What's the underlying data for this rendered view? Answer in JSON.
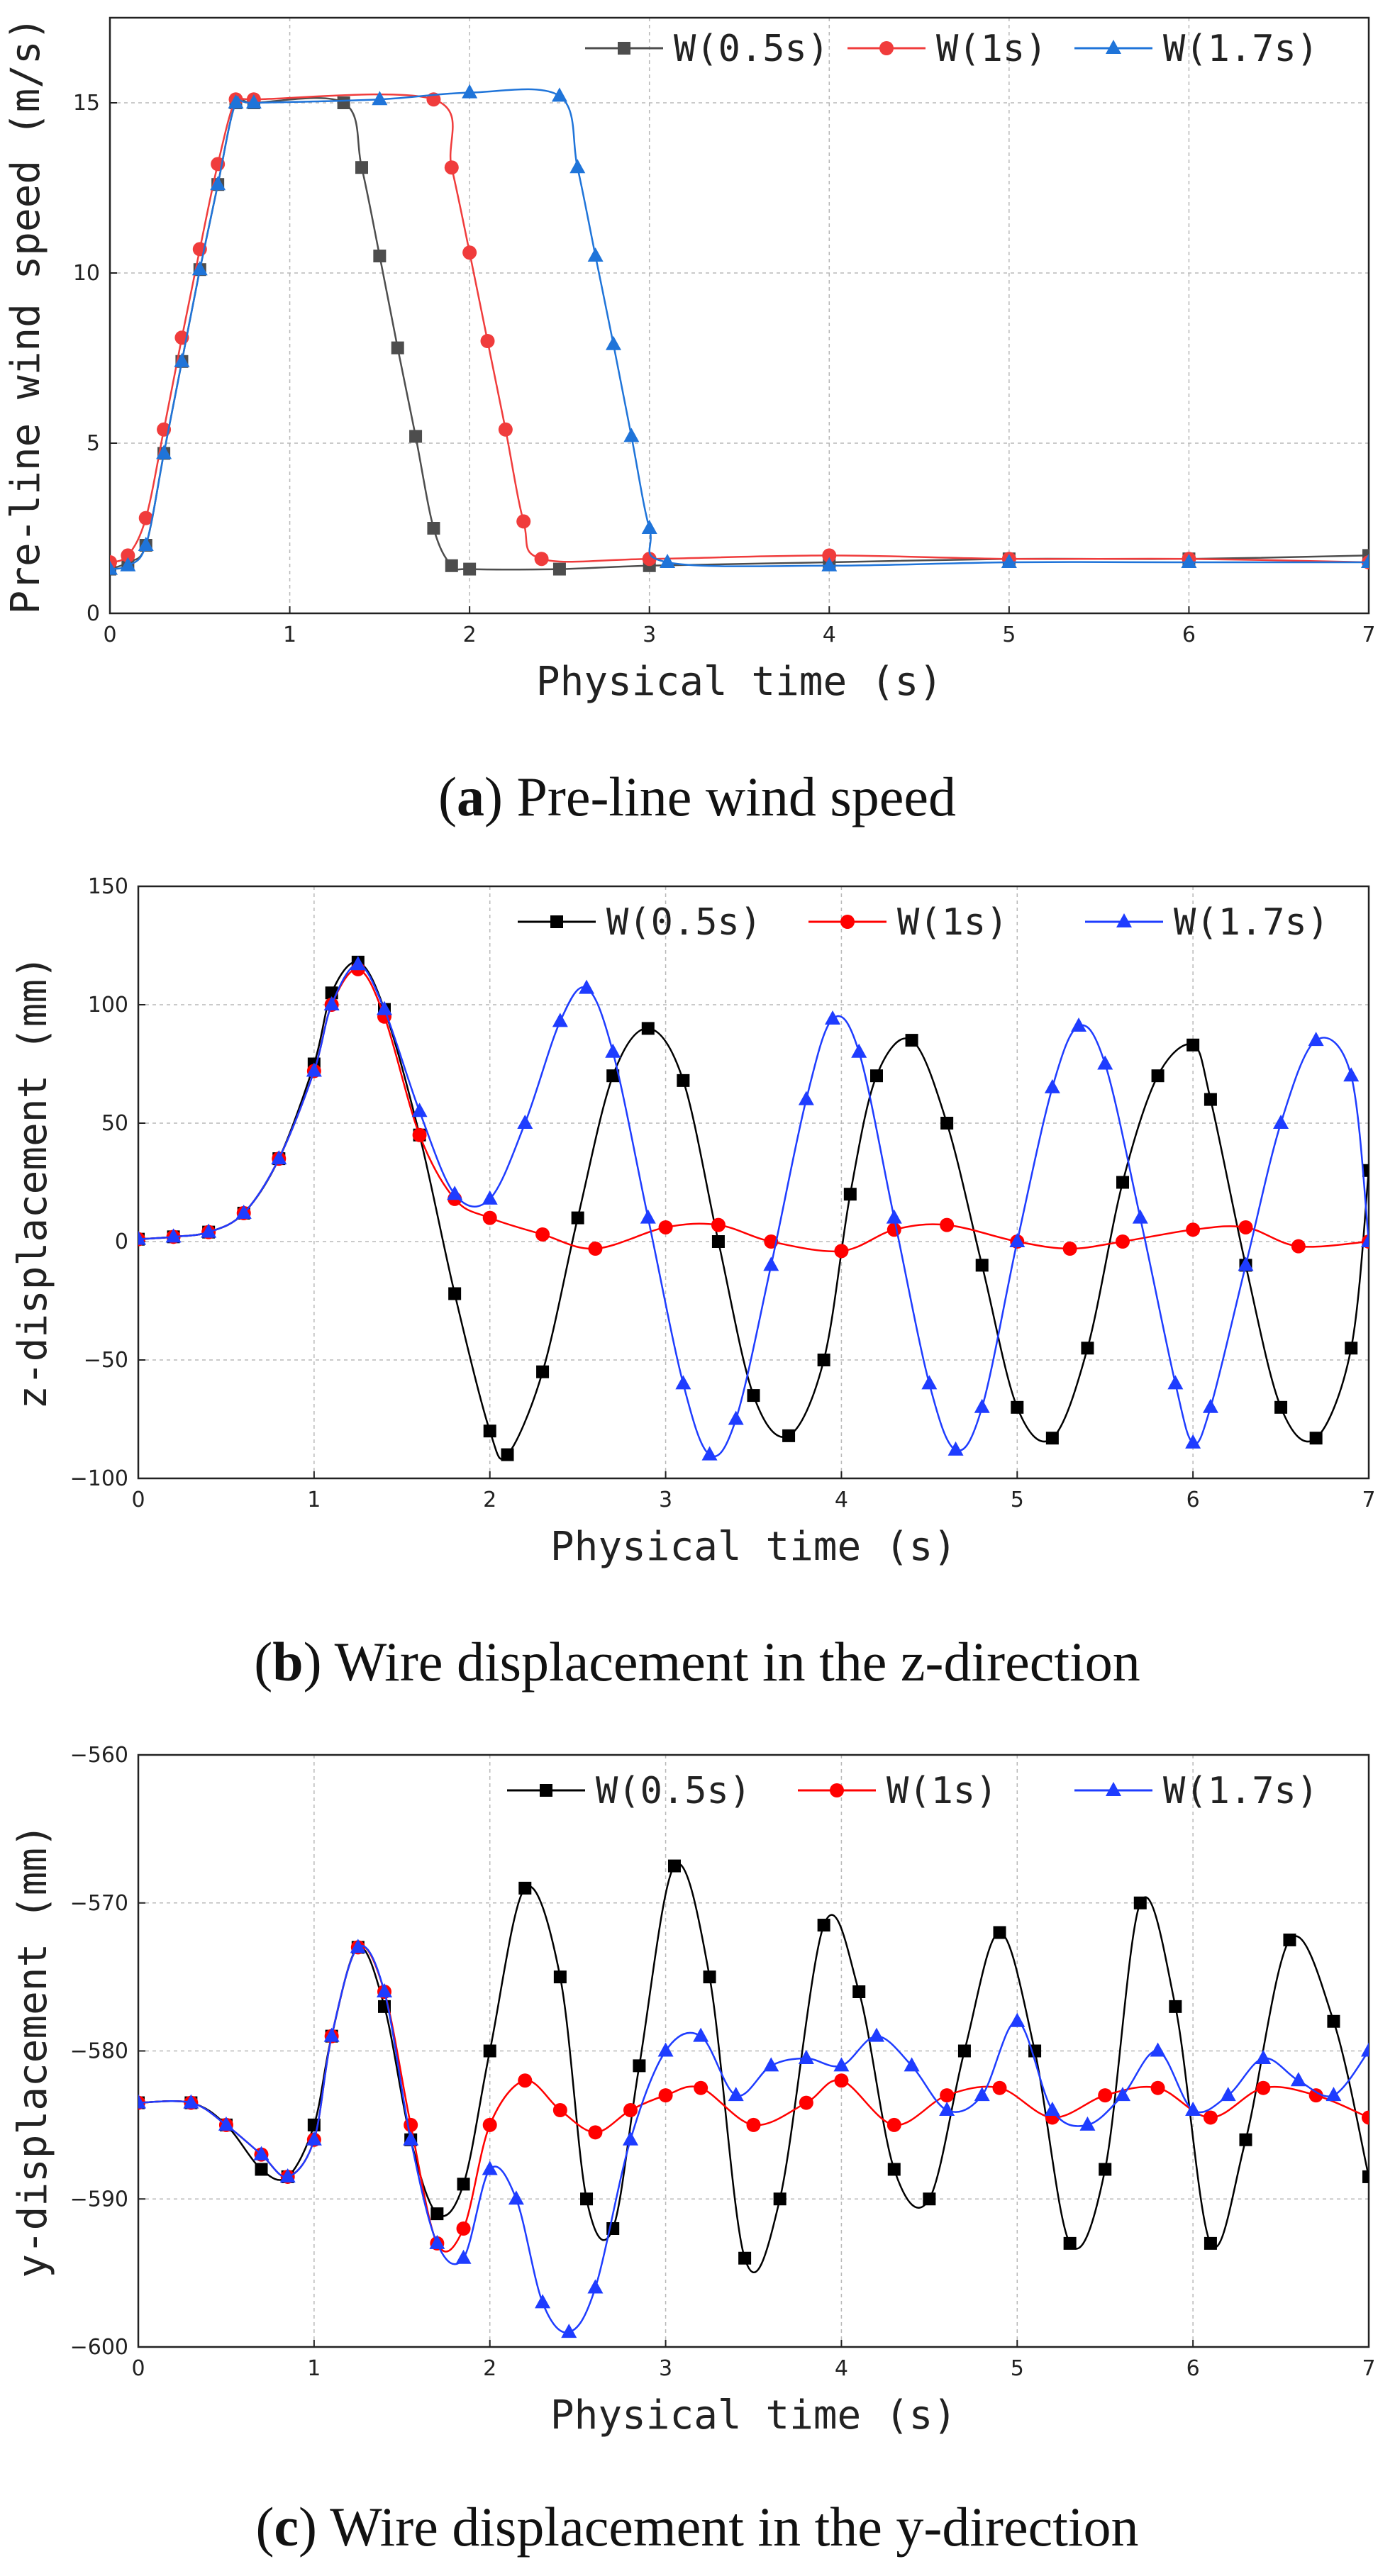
{
  "chart_data": [
    {
      "type": "line",
      "caption_letter": "a",
      "caption_text": "Pre-line wind speed",
      "xlabel": "Physical time (s)",
      "ylabel": "Pre-line wind speed (m/s)",
      "xlim": [
        0,
        7
      ],
      "ylim": [
        0,
        17.5
      ],
      "xticks": [
        0,
        1,
        2,
        3,
        4,
        5,
        6,
        7
      ],
      "yticks": [
        0,
        5,
        10,
        15
      ],
      "grid": true,
      "legend": "top-right",
      "series": [
        {
          "name": "W(0.5s)",
          "color": "#4d4d4d",
          "marker": "square",
          "x": [
            0,
            0.1,
            0.2,
            0.3,
            0.4,
            0.5,
            0.6,
            0.7,
            0.8,
            1.3,
            1.4,
            1.5,
            1.6,
            1.7,
            1.8,
            1.9,
            2.0,
            2.5,
            3.0,
            4.0,
            5.0,
            6.0,
            7.0
          ],
          "y": [
            1.3,
            1.5,
            2.0,
            4.7,
            7.4,
            10.1,
            12.6,
            15.0,
            15.0,
            15.0,
            13.1,
            10.5,
            7.8,
            5.2,
            2.5,
            1.4,
            1.3,
            1.3,
            1.4,
            1.5,
            1.6,
            1.6,
            1.7
          ]
        },
        {
          "name": "W(1s)",
          "color": "#f03c3c",
          "marker": "circle",
          "x": [
            0,
            0.1,
            0.2,
            0.3,
            0.4,
            0.5,
            0.6,
            0.7,
            0.8,
            1.8,
            1.9,
            2.0,
            2.1,
            2.2,
            2.3,
            2.4,
            3.0,
            4.0,
            5.0,
            6.0,
            7.0
          ],
          "y": [
            1.5,
            1.7,
            2.8,
            5.4,
            8.1,
            10.7,
            13.2,
            15.1,
            15.1,
            15.1,
            13.1,
            10.6,
            8.0,
            5.4,
            2.7,
            1.6,
            1.6,
            1.7,
            1.6,
            1.6,
            1.5
          ]
        },
        {
          "name": "W(1.7s)",
          "color": "#1f74d9",
          "marker": "triangle",
          "x": [
            0,
            0.1,
            0.2,
            0.3,
            0.4,
            0.5,
            0.6,
            0.7,
            0.8,
            1.5,
            2.0,
            2.5,
            2.6,
            2.7,
            2.8,
            2.9,
            3.0,
            3.1,
            4.0,
            5.0,
            6.0,
            7.0
          ],
          "y": [
            1.3,
            1.4,
            2.0,
            4.7,
            7.4,
            10.1,
            12.6,
            15.0,
            15.0,
            15.1,
            15.3,
            15.2,
            13.1,
            10.5,
            7.9,
            5.2,
            2.5,
            1.5,
            1.4,
            1.5,
            1.5,
            1.5
          ]
        }
      ]
    },
    {
      "type": "line",
      "caption_letter": "b",
      "caption_text": "Wire displacement in the z-direction",
      "xlabel": "Physical time (s)",
      "ylabel": "z-displacement (mm)",
      "xlim": [
        0,
        7
      ],
      "ylim": [
        -100,
        150
      ],
      "xticks": [
        0,
        1,
        2,
        3,
        4,
        5,
        6,
        7
      ],
      "yticks": [
        -100,
        -50,
        0,
        50,
        100,
        150
      ],
      "grid": true,
      "legend": "top-right",
      "series": [
        {
          "name": "W(0.5s)",
          "color": "#000000",
          "marker": "square",
          "x": [
            0,
            0.2,
            0.4,
            0.6,
            0.8,
            1.0,
            1.1,
            1.25,
            1.4,
            1.6,
            1.8,
            2.0,
            2.1,
            2.3,
            2.5,
            2.7,
            2.9,
            3.1,
            3.3,
            3.5,
            3.7,
            3.9,
            4.05,
            4.2,
            4.4,
            4.6,
            4.8,
            5.0,
            5.2,
            5.4,
            5.6,
            5.8,
            6.0,
            6.1,
            6.3,
            6.5,
            6.7,
            6.9,
            7.0
          ],
          "y": [
            1,
            2,
            4,
            12,
            35,
            75,
            105,
            118,
            98,
            45,
            -22,
            -80,
            -90,
            -55,
            10,
            70,
            90,
            68,
            0,
            -65,
            -82,
            -50,
            20,
            70,
            85,
            50,
            -10,
            -70,
            -83,
            -45,
            25,
            70,
            83,
            60,
            -10,
            -70,
            -83,
            -45,
            30
          ]
        },
        {
          "name": "W(1s)",
          "color": "#ff0000",
          "marker": "circle",
          "x": [
            0,
            0.2,
            0.4,
            0.6,
            0.8,
            1.0,
            1.1,
            1.25,
            1.4,
            1.6,
            1.8,
            2.0,
            2.3,
            2.6,
            3.0,
            3.3,
            3.6,
            4.0,
            4.3,
            4.6,
            5.0,
            5.3,
            5.6,
            6.0,
            6.3,
            6.6,
            7.0
          ],
          "y": [
            1,
            2,
            4,
            12,
            35,
            72,
            100,
            115,
            95,
            45,
            18,
            10,
            3,
            -3,
            6,
            7,
            0,
            -4,
            5,
            7,
            0,
            -3,
            0,
            5,
            6,
            -2,
            0
          ]
        },
        {
          "name": "W(1.7s)",
          "color": "#1e3cff",
          "marker": "triangle",
          "x": [
            0,
            0.2,
            0.4,
            0.6,
            0.8,
            1.0,
            1.1,
            1.25,
            1.4,
            1.6,
            1.8,
            2.0,
            2.2,
            2.4,
            2.55,
            2.7,
            2.9,
            3.1,
            3.25,
            3.4,
            3.6,
            3.8,
            3.95,
            4.1,
            4.3,
            4.5,
            4.65,
            4.8,
            5.0,
            5.2,
            5.35,
            5.5,
            5.7,
            5.9,
            6.0,
            6.1,
            6.3,
            6.5,
            6.7,
            6.9,
            7.0
          ],
          "y": [
            1,
            2,
            4,
            12,
            35,
            72,
            100,
            117,
            98,
            55,
            20,
            18,
            50,
            93,
            107,
            80,
            10,
            -60,
            -90,
            -75,
            -10,
            60,
            94,
            80,
            10,
            -60,
            -88,
            -70,
            0,
            65,
            91,
            75,
            10,
            -60,
            -85,
            -70,
            -10,
            50,
            85,
            70,
            0
          ]
        }
      ]
    },
    {
      "type": "line",
      "caption_letter": "c",
      "caption_text": "Wire displacement in the y-direction",
      "xlabel": "Physical time (s)",
      "ylabel": "y-displacement (mm)",
      "xlim": [
        0,
        7
      ],
      "ylim": [
        -600,
        -560
      ],
      "xticks": [
        0,
        1,
        2,
        3,
        4,
        5,
        6,
        7
      ],
      "yticks": [
        -600,
        -590,
        -580,
        -570,
        -560
      ],
      "grid": true,
      "legend": "top-right",
      "series": [
        {
          "name": "W(0.5s)",
          "color": "#000000",
          "marker": "square",
          "x": [
            0,
            0.3,
            0.5,
            0.7,
            0.85,
            1.0,
            1.1,
            1.25,
            1.4,
            1.55,
            1.7,
            1.85,
            2.0,
            2.2,
            2.4,
            2.55,
            2.7,
            2.85,
            3.05,
            3.25,
            3.45,
            3.65,
            3.9,
            4.1,
            4.3,
            4.5,
            4.7,
            4.9,
            5.1,
            5.3,
            5.5,
            5.7,
            5.9,
            6.1,
            6.3,
            6.55,
            6.8,
            7.0
          ],
          "y": [
            -583.5,
            -583.5,
            -585,
            -588,
            -588.5,
            -585,
            -579,
            -573,
            -577,
            -586,
            -591,
            -589,
            -580,
            -569,
            -575,
            -590,
            -592,
            -581,
            -567.5,
            -575,
            -594,
            -590,
            -571.5,
            -576,
            -588,
            -590,
            -580,
            -572,
            -580,
            -593,
            -588,
            -570,
            -577,
            -593,
            -586,
            -572.5,
            -578,
            -588.5
          ]
        },
        {
          "name": "W(1s)",
          "color": "#ff0000",
          "marker": "circle",
          "x": [
            0,
            0.3,
            0.5,
            0.7,
            0.85,
            1.0,
            1.1,
            1.25,
            1.4,
            1.55,
            1.7,
            1.85,
            2.0,
            2.2,
            2.4,
            2.6,
            2.8,
            3.0,
            3.2,
            3.5,
            3.8,
            4.0,
            4.3,
            4.6,
            4.9,
            5.2,
            5.5,
            5.8,
            6.1,
            6.4,
            6.7,
            7.0
          ],
          "y": [
            -583.5,
            -583.5,
            -585,
            -587,
            -588.5,
            -586,
            -579,
            -573,
            -576,
            -585,
            -593,
            -592,
            -585,
            -582,
            -584,
            -585.5,
            -584,
            -583,
            -582.5,
            -585,
            -583.5,
            -582,
            -585,
            -583,
            -582.5,
            -584.5,
            -583,
            -582.5,
            -584.5,
            -582.5,
            -583,
            -584.5
          ]
        },
        {
          "name": "W(1.7s)",
          "color": "#1e3cff",
          "marker": "triangle",
          "x": [
            0,
            0.3,
            0.5,
            0.7,
            0.85,
            1.0,
            1.1,
            1.25,
            1.4,
            1.55,
            1.7,
            1.85,
            2.0,
            2.15,
            2.3,
            2.45,
            2.6,
            2.8,
            3.0,
            3.2,
            3.4,
            3.6,
            3.8,
            4.0,
            4.2,
            4.4,
            4.6,
            4.8,
            5.0,
            5.2,
            5.4,
            5.6,
            5.8,
            6.0,
            6.2,
            6.4,
            6.6,
            6.8,
            7.0
          ],
          "y": [
            -583.5,
            -583.5,
            -585,
            -587,
            -588.5,
            -586,
            -579,
            -573,
            -576,
            -586,
            -593,
            -594,
            -588,
            -590,
            -597,
            -599,
            -596,
            -586,
            -580,
            -579,
            -583,
            -581,
            -580.5,
            -581,
            -579,
            -581,
            -584,
            -583,
            -578,
            -584,
            -585,
            -583,
            -580,
            -584,
            -583,
            -580.5,
            -582,
            -583,
            -580
          ]
        }
      ]
    }
  ]
}
